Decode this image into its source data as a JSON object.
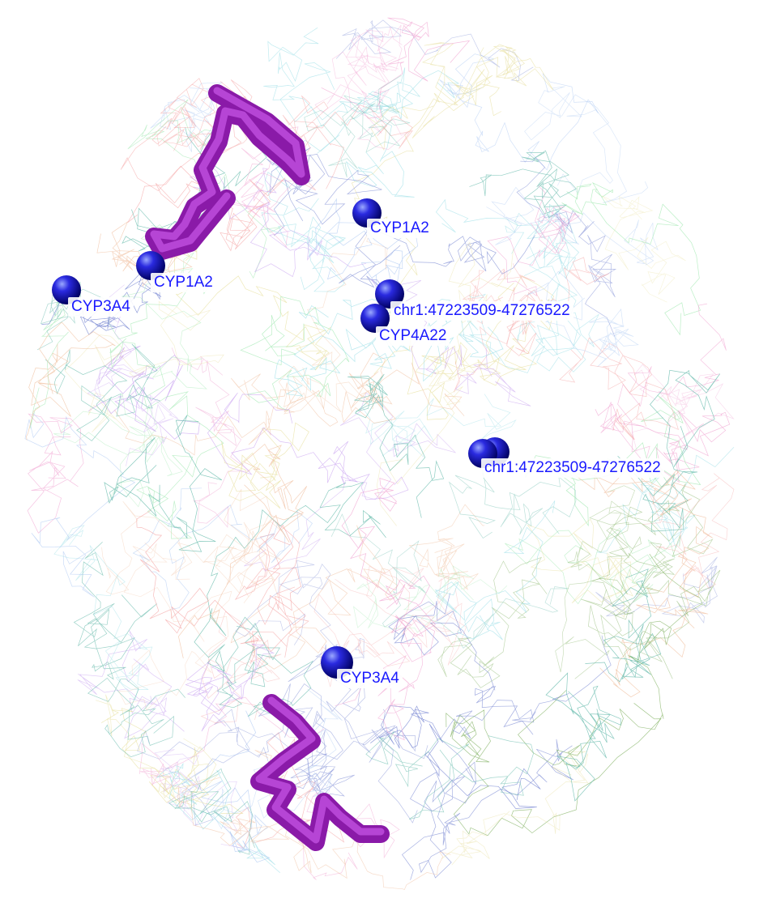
{
  "markers": [
    {
      "id": "cyp1a2-a",
      "label": "CYP1A2"
    },
    {
      "id": "cyp1a2-b",
      "label": "CYP1A2"
    },
    {
      "id": "cyp3a4-a",
      "label": "CYP3A4"
    },
    {
      "id": "chr1-a",
      "label": "chr1:47223509-47276522"
    },
    {
      "id": "cyp4a22",
      "label": "CYP4A22"
    },
    {
      "id": "chr1-b",
      "label": "chr1:47223509-47276522"
    },
    {
      "id": "cyp3a4-b",
      "label": "CYP3A4"
    }
  ],
  "colors": {
    "marker": "#1010c8",
    "label_text": "#1a1aff",
    "highlight_tube": "#a020c0"
  }
}
